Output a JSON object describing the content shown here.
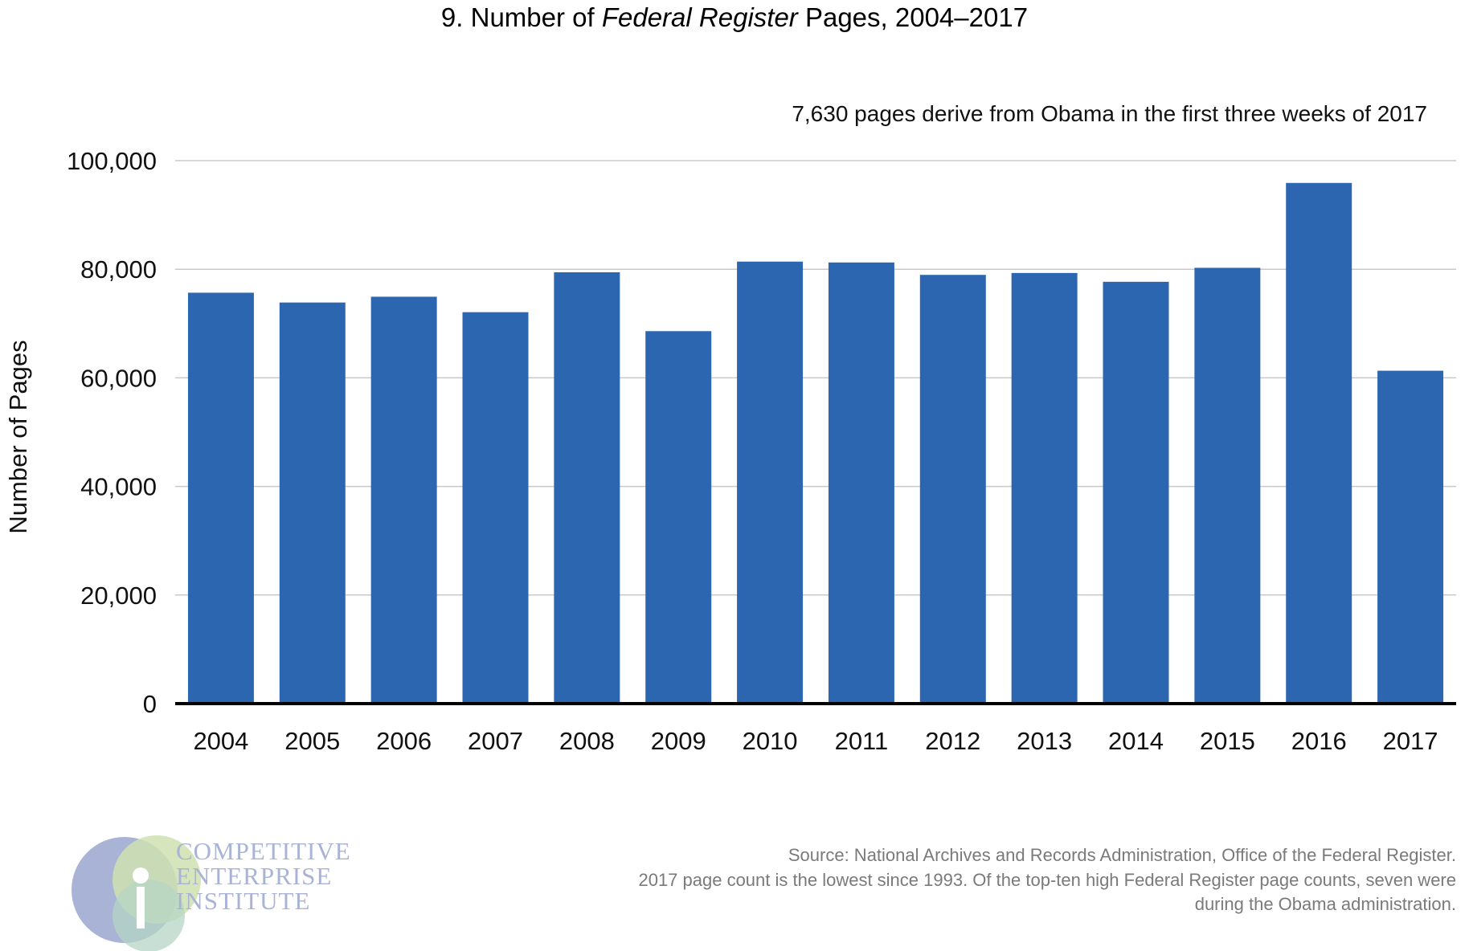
{
  "chart_data": {
    "type": "bar",
    "title_prefix": "9. Number of ",
    "title_italic": "Federal Register",
    "title_suffix": " Pages, 2004–2017",
    "ylabel": "Number of Pages",
    "xlabel": "",
    "ylim": [
      0,
      100000
    ],
    "yticks": [
      0,
      20000,
      40000,
      60000,
      80000,
      100000
    ],
    "ytick_labels": [
      "0",
      "20,000",
      "40,000",
      "60,000",
      "80,000",
      "100,000"
    ],
    "grid": true,
    "categories": [
      "2004",
      "2005",
      "2006",
      "2007",
      "2008",
      "2009",
      "2010",
      "2011",
      "2012",
      "2013",
      "2014",
      "2015",
      "2016",
      "2017"
    ],
    "values": [
      75675,
      73870,
      74937,
      72090,
      79435,
      68598,
      81405,
      81247,
      78961,
      79311,
      77687,
      80260,
      95894,
      61308
    ],
    "bar_color": "#2d66b0",
    "annotation": "7,630 pages derive from Obama in the first three weeks of 2017"
  },
  "source_lines": [
    "Source: National Archives and Records Administration, Office of the Federal Register.",
    "2017 page count is the lowest since 1993. Of the top-ten high Federal Register page counts, seven were",
    "during the Obama administration."
  ],
  "logo": {
    "lines": [
      "COMPETITIVE",
      "ENTERPRISE",
      "INSTITUTE"
    ],
    "colors": {
      "blue": "#a9b3d6",
      "green": "#cfe0b0",
      "teal": "#b5d5c4",
      "text": "#a9b3d6"
    }
  }
}
